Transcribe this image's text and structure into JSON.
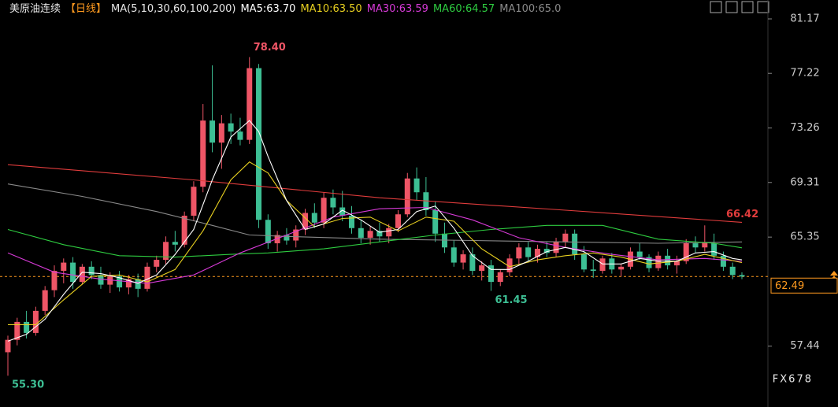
{
  "chart_data": {
    "type": "candlestick",
    "title": "美原油连续",
    "period": "【日线】",
    "indicator": "MA(5,10,30,60,100,200)",
    "up_color": "#ee5566",
    "down_color": "#3dbf94",
    "ylim": [
      53.03,
      82.54
    ],
    "yticks": [
      81.17,
      77.22,
      73.26,
      69.31,
      65.35,
      57.44
    ],
    "last_price": 62.49,
    "last_price_color": "#ff9a1f",
    "watermark": "FX678",
    "ohlc": [
      [
        57.0,
        58.2,
        55.3,
        57.9
      ],
      [
        57.9,
        59.5,
        57.5,
        59.2
      ],
      [
        59.2,
        60.0,
        58.0,
        58.4
      ],
      [
        58.4,
        60.3,
        58.2,
        60.0
      ],
      [
        60.0,
        61.8,
        59.7,
        61.5
      ],
      [
        61.5,
        63.3,
        61.0,
        62.9
      ],
      [
        62.9,
        63.8,
        62.0,
        63.5
      ],
      [
        63.5,
        63.9,
        61.6,
        62.1
      ],
      [
        62.1,
        63.4,
        61.9,
        63.2
      ],
      [
        63.2,
        63.6,
        62.3,
        62.6
      ],
      [
        62.6,
        63.2,
        61.6,
        61.9
      ],
      [
        61.9,
        62.8,
        61.3,
        62.5
      ],
      [
        62.5,
        62.9,
        61.4,
        61.7
      ],
      [
        61.7,
        62.6,
        61.2,
        62.3
      ],
      [
        62.3,
        62.7,
        61.0,
        61.6
      ],
      [
        61.6,
        63.5,
        61.4,
        63.2
      ],
      [
        63.2,
        64.0,
        62.8,
        63.7
      ],
      [
        63.7,
        65.4,
        63.4,
        65.0
      ],
      [
        65.0,
        65.8,
        64.3,
        64.8
      ],
      [
        64.8,
        67.2,
        64.6,
        66.9
      ],
      [
        66.9,
        69.4,
        66.5,
        69.0
      ],
      [
        69.0,
        75.0,
        68.6,
        73.8
      ],
      [
        73.8,
        77.8,
        71.5,
        72.2
      ],
      [
        72.2,
        74.2,
        70.3,
        73.6
      ],
      [
        73.6,
        74.3,
        72.1,
        73.0
      ],
      [
        73.0,
        74.0,
        72.0,
        72.4
      ],
      [
        72.4,
        78.4,
        72.1,
        77.6
      ],
      [
        77.6,
        77.9,
        66.0,
        66.6
      ],
      [
        66.6,
        67.0,
        64.5,
        64.9
      ],
      [
        64.9,
        65.8,
        64.3,
        65.5
      ],
      [
        65.5,
        66.0,
        64.8,
        65.1
      ],
      [
        65.1,
        66.2,
        64.6,
        65.9
      ],
      [
        65.9,
        67.4,
        65.5,
        67.1
      ],
      [
        67.1,
        67.8,
        66.0,
        66.4
      ],
      [
        66.4,
        68.6,
        66.0,
        68.2
      ],
      [
        68.2,
        68.8,
        67.0,
        67.5
      ],
      [
        67.5,
        68.7,
        66.5,
        66.9
      ],
      [
        66.9,
        67.6,
        65.6,
        66.0
      ],
      [
        66.0,
        66.6,
        64.9,
        65.3
      ],
      [
        65.3,
        66.1,
        64.8,
        65.8
      ],
      [
        65.8,
        66.4,
        65.0,
        65.4
      ],
      [
        65.4,
        66.3,
        64.9,
        66.0
      ],
      [
        66.0,
        67.3,
        65.7,
        67.0
      ],
      [
        67.0,
        70.0,
        66.8,
        69.6
      ],
      [
        69.6,
        70.4,
        68.0,
        68.6
      ],
      [
        68.6,
        69.7,
        66.9,
        67.3
      ],
      [
        67.3,
        67.9,
        65.0,
        65.6
      ],
      [
        65.6,
        66.4,
        64.2,
        64.6
      ],
      [
        64.6,
        65.1,
        63.2,
        63.5
      ],
      [
        63.5,
        64.4,
        63.0,
        64.1
      ],
      [
        64.1,
        64.6,
        62.6,
        62.9
      ],
      [
        62.9,
        63.6,
        62.2,
        63.3
      ],
      [
        63.3,
        63.7,
        61.45,
        62.1
      ],
      [
        62.1,
        63.0,
        61.8,
        62.8
      ],
      [
        62.8,
        64.1,
        62.5,
        63.8
      ],
      [
        63.8,
        64.9,
        63.4,
        64.6
      ],
      [
        64.6,
        65.0,
        63.6,
        63.9
      ],
      [
        63.9,
        64.8,
        63.5,
        64.5
      ],
      [
        64.5,
        65.0,
        63.9,
        64.2
      ],
      [
        64.2,
        65.3,
        63.9,
        65.0
      ],
      [
        65.0,
        65.9,
        64.6,
        65.6
      ],
      [
        65.6,
        65.9,
        63.7,
        64.1
      ],
      [
        64.1,
        64.7,
        62.8,
        63.0
      ],
      [
        63.0,
        63.7,
        62.4,
        62.9
      ],
      [
        62.9,
        64.0,
        62.7,
        63.8
      ],
      [
        63.8,
        64.2,
        62.7,
        63.0
      ],
      [
        63.0,
        63.4,
        62.5,
        63.2
      ],
      [
        63.2,
        64.6,
        63.0,
        64.3
      ],
      [
        64.3,
        64.9,
        63.7,
        63.9
      ],
      [
        63.9,
        64.1,
        62.8,
        63.1
      ],
      [
        63.1,
        64.3,
        62.9,
        64.0
      ],
      [
        64.0,
        64.5,
        63.0,
        63.3
      ],
      [
        63.3,
        64.0,
        62.7,
        63.6
      ],
      [
        63.6,
        65.2,
        63.4,
        64.9
      ],
      [
        64.9,
        65.4,
        64.2,
        64.6
      ],
      [
        64.6,
        66.2,
        64.3,
        65.0
      ],
      [
        64.9,
        65.6,
        63.7,
        64.0
      ],
      [
        64.0,
        64.3,
        62.9,
        63.2
      ],
      [
        63.2,
        63.5,
        62.3,
        62.6
      ],
      [
        62.6,
        62.8,
        62.3,
        62.49
      ]
    ],
    "series": [
      {
        "color": "#e03c3c",
        "x": [
          0,
          20,
          40,
          60,
          79
        ],
        "values": [
          70.6,
          69.5,
          68.2,
          67.3,
          66.42
        ]
      },
      {
        "name": "MA100:65.0",
        "color": "#8a8a8a",
        "x": [
          0,
          8,
          16,
          22,
          26,
          30,
          40,
          50,
          60,
          70,
          79
        ],
        "values": [
          69.2,
          68.3,
          67.2,
          66.2,
          65.5,
          65.4,
          65.2,
          65.1,
          65.0,
          64.9,
          65.0
        ]
      },
      {
        "name": "MA60:64.57",
        "color": "#2ecc40",
        "x": [
          0,
          6,
          12,
          18,
          24,
          28,
          34,
          40,
          46,
          52,
          58,
          64,
          70,
          76,
          79
        ],
        "values": [
          65.9,
          64.8,
          64.0,
          63.9,
          64.1,
          64.2,
          64.5,
          65.0,
          65.5,
          65.9,
          66.2,
          66.2,
          65.2,
          64.9,
          64.57
        ]
      },
      {
        "name": "MA30:63.59",
        "color": "#d63ad6",
        "x": [
          0,
          5,
          10,
          15,
          20,
          25,
          30,
          35,
          40,
          45,
          50,
          55,
          60,
          65,
          70,
          75,
          79
        ],
        "values": [
          64.2,
          62.8,
          62.3,
          62.0,
          62.6,
          64.2,
          65.5,
          66.8,
          67.4,
          67.5,
          66.6,
          65.3,
          64.6,
          64.1,
          63.7,
          63.8,
          63.59
        ]
      },
      {
        "name": "MA10:63.50",
        "color": "#e8d020",
        "x": [
          0,
          3,
          6,
          9,
          12,
          15,
          18,
          21,
          24,
          26,
          28,
          30,
          33,
          36,
          39,
          42,
          45,
          48,
          51,
          54,
          57,
          60,
          63,
          66,
          69,
          72,
          75,
          79
        ],
        "values": [
          59.0,
          59.0,
          60.8,
          62.5,
          62.6,
          62.1,
          63.0,
          65.8,
          69.5,
          70.8,
          70.0,
          68.0,
          66.1,
          66.7,
          66.8,
          65.8,
          66.8,
          66.5,
          64.5,
          63.2,
          63.7,
          64.0,
          64.2,
          63.9,
          63.4,
          63.6,
          64.1,
          63.5
        ]
      },
      {
        "name": "MA5:63.70",
        "color": "#ffffff",
        "x": [
          0,
          2,
          4,
          6,
          8,
          10,
          12,
          14,
          16,
          18,
          20,
          22,
          24,
          26,
          27,
          28,
          30,
          32,
          34,
          36,
          38,
          40,
          42,
          44,
          46,
          48,
          50,
          52,
          54,
          56,
          58,
          60,
          62,
          64,
          66,
          68,
          70,
          72,
          74,
          76,
          78,
          79
        ],
        "values": [
          57.8,
          58.3,
          59.4,
          61.2,
          62.8,
          62.7,
          62.4,
          62.0,
          62.6,
          64.1,
          65.9,
          69.5,
          72.6,
          73.8,
          73.0,
          71.2,
          68.0,
          65.9,
          66.3,
          67.3,
          66.6,
          65.7,
          65.9,
          67.2,
          67.6,
          66.0,
          64.0,
          63.0,
          63.0,
          63.6,
          64.3,
          64.6,
          64.3,
          63.4,
          63.4,
          63.8,
          63.6,
          63.6,
          64.2,
          64.3,
          63.8,
          63.7
        ]
      }
    ],
    "annotations": [
      {
        "label": "78.40",
        "x": 26,
        "value": 78.4,
        "color": "#ee5566"
      },
      {
        "label": "61.45",
        "x": 52,
        "value": 61.45,
        "color": "#3dbf94"
      },
      {
        "label": "55.30",
        "x": 0,
        "value": 55.3,
        "color": "#3dbf94"
      }
    ]
  }
}
